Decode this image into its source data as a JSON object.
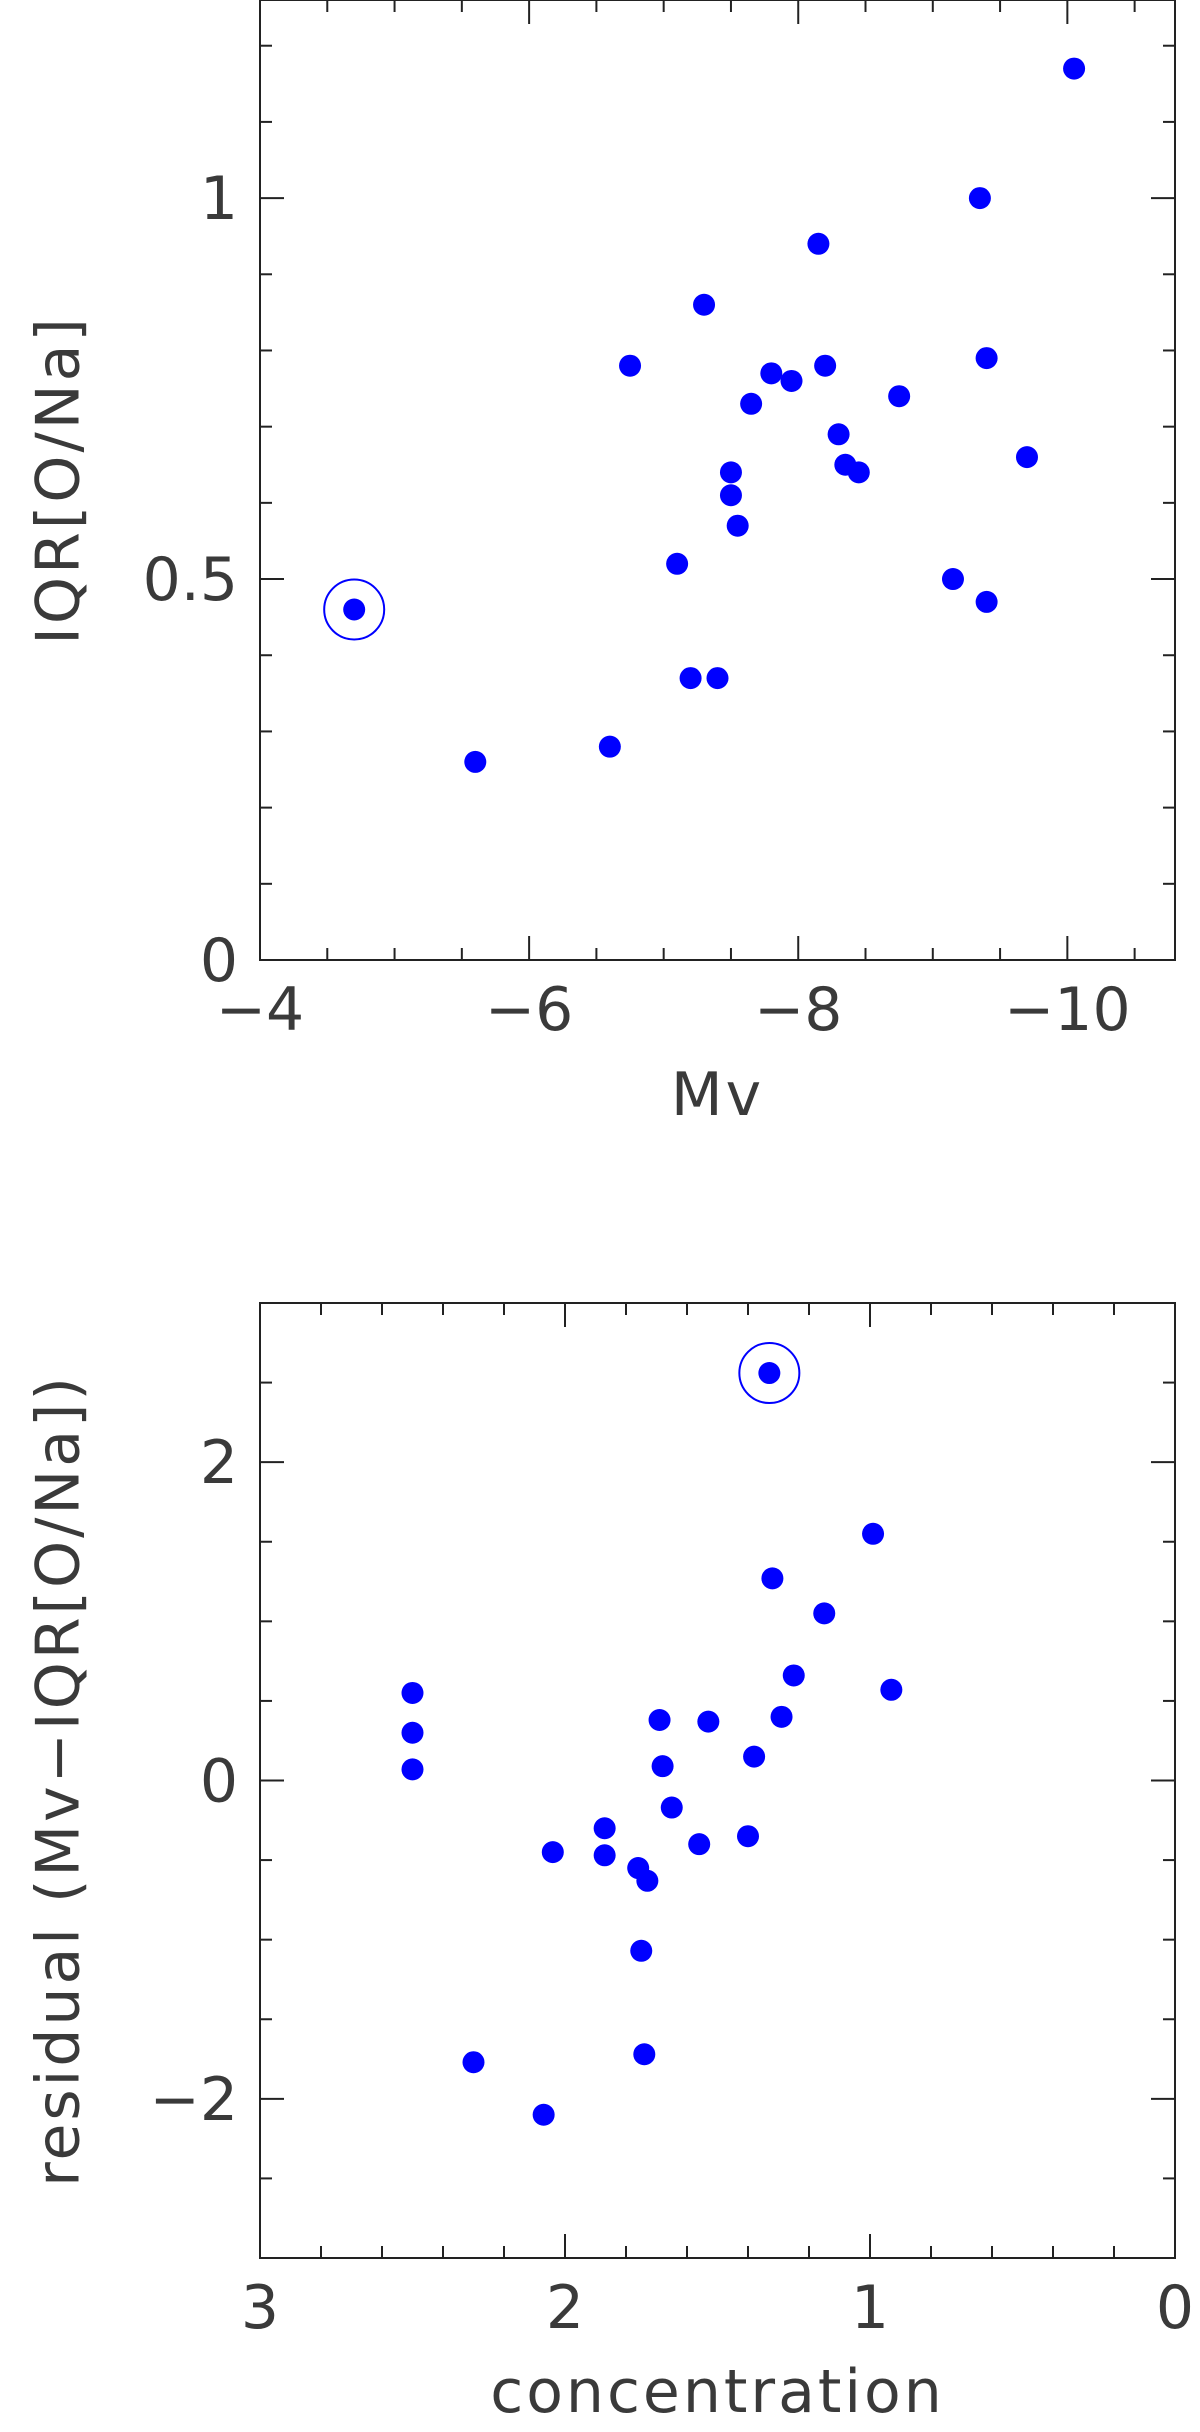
{
  "chart_data": [
    {
      "type": "scatter",
      "xlabel": "Mv",
      "ylabel": "IQR[O/Na]",
      "xlim": [
        -4,
        -10.8
      ],
      "ylim": [
        0,
        1.26
      ],
      "x_reversed": true,
      "x_ticks": [
        -4,
        -6,
        -8,
        -10
      ],
      "x_tick_labels": [
        "−4",
        "−6",
        "−8",
        "−10"
      ],
      "y_ticks": [
        0,
        0.5,
        1
      ],
      "y_tick_labels": [
        "0",
        "0.5",
        "1"
      ],
      "x_minor_step": 0.5,
      "y_minor_step": 0.1,
      "grid": false,
      "marker_color": "#0000ff",
      "points": [
        [
          -4.7,
          0.46
        ],
        [
          -5.6,
          0.26
        ],
        [
          -6.6,
          0.28
        ],
        [
          -6.75,
          0.78
        ],
        [
          -7.1,
          0.52
        ],
        [
          -7.2,
          0.37
        ],
        [
          -7.4,
          0.37
        ],
        [
          -7.3,
          0.86
        ],
        [
          -7.5,
          0.64
        ],
        [
          -7.5,
          0.61
        ],
        [
          -7.55,
          0.57
        ],
        [
          -7.65,
          0.73
        ],
        [
          -7.8,
          0.77
        ],
        [
          -7.95,
          0.76
        ],
        [
          -8.15,
          0.94
        ],
        [
          -8.2,
          0.78
        ],
        [
          -8.3,
          0.69
        ],
        [
          -8.35,
          0.65
        ],
        [
          -8.45,
          0.64
        ],
        [
          -8.75,
          0.74
        ],
        [
          -9.15,
          0.5
        ],
        [
          -9.35,
          1.0
        ],
        [
          -9.4,
          0.79
        ],
        [
          -9.4,
          0.47
        ],
        [
          -9.7,
          0.66
        ],
        [
          -10.05,
          1.17
        ]
      ],
      "highlighted": [
        [
          -4.7,
          0.46
        ]
      ]
    },
    {
      "type": "scatter",
      "xlabel": "concentration",
      "ylabel": "residual (Mv−IQR[O/Na])",
      "xlim": [
        3,
        0
      ],
      "ylim": [
        -3,
        3
      ],
      "x_reversed": true,
      "x_ticks": [
        3,
        2,
        1,
        0
      ],
      "x_tick_labels": [
        "3",
        "2",
        "1",
        "0"
      ],
      "y_ticks": [
        -2,
        0,
        2
      ],
      "y_tick_labels": [
        "−2",
        "0",
        "2"
      ],
      "x_minor_step": 0.2,
      "y_minor_step": 0.5,
      "grid": false,
      "marker_color": "#0000ff",
      "points": [
        [
          2.5,
          0.55
        ],
        [
          2.5,
          0.3
        ],
        [
          2.5,
          0.07
        ],
        [
          2.3,
          -1.77
        ],
        [
          2.07,
          -2.1
        ],
        [
          2.04,
          -0.45
        ],
        [
          1.87,
          -0.3
        ],
        [
          1.87,
          -0.47
        ],
        [
          1.76,
          -0.55
        ],
        [
          1.73,
          -0.63
        ],
        [
          1.75,
          -1.07
        ],
        [
          1.74,
          -1.72
        ],
        [
          1.69,
          0.38
        ],
        [
          1.68,
          0.09
        ],
        [
          1.65,
          -0.17
        ],
        [
          1.56,
          -0.4
        ],
        [
          1.53,
          0.37
        ],
        [
          1.4,
          -0.35
        ],
        [
          1.38,
          0.15
        ],
        [
          1.32,
          1.27
        ],
        [
          1.29,
          0.4
        ],
        [
          1.25,
          0.66
        ],
        [
          1.15,
          1.05
        ],
        [
          0.99,
          1.55
        ],
        [
          0.93,
          0.57
        ],
        [
          1.33,
          2.56
        ]
      ],
      "highlighted": [
        [
          1.33,
          2.56
        ]
      ]
    }
  ]
}
